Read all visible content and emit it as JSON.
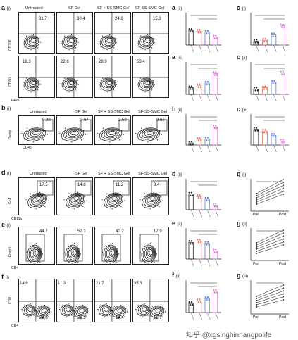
{
  "rows": {
    "a": {
      "label": "a",
      "sub": "(i)",
      "headers": [
        "Untreated",
        "SF Gel",
        "SF + SS-SMC Gel",
        "SF-SS-SMC Gel"
      ],
      "top_values": [
        "31.7",
        "30.4",
        "24.8",
        "15.3"
      ],
      "bottom_values": [
        "18.3",
        "22.6",
        "28.9",
        "53.4"
      ],
      "y_top": "CD206",
      "y_bottom": "CD80",
      "x": "F4/80"
    },
    "b": {
      "label": "b",
      "sub": "(i)",
      "headers": [
        "Untreated",
        "SF Gel",
        "SF + SS-SMC Gel",
        "SF-SS-SMC Gel"
      ],
      "values": [
        "0.98",
        "2.67",
        "2.58",
        "8.66"
      ],
      "y": "Dump",
      "x": "CD45"
    },
    "d": {
      "label": "d",
      "sub": "(i)",
      "headers": [
        "Untreated",
        "SF Gel",
        "SF + SS-SMC Gel",
        "SF-SS-SMC Gel"
      ],
      "values": [
        "17.5",
        "14.8",
        "11.2",
        "3.4"
      ],
      "y": "Gr-1",
      "x": "CD11b"
    },
    "e": {
      "label": "e",
      "sub": "(i)",
      "values": [
        "44.7",
        "52.1",
        "40.2",
        "17.9"
      ],
      "y": "Foxp3",
      "x": "CD4"
    },
    "f": {
      "label": "f",
      "sub": "(i)",
      "top_values": [
        "14.6",
        "11.3",
        "21.7",
        "35.3"
      ],
      "bottom_values": [
        "24.8",
        "21.9",
        "14.4",
        "12.7"
      ],
      "y": "CD8",
      "x": "CD4"
    }
  },
  "bar_panels": [
    {
      "label": "a",
      "sub": "(ii)"
    },
    {
      "label": "a",
      "sub": "(iii)"
    },
    {
      "label": "b",
      "sub": "(ii)"
    },
    {
      "label": "d",
      "sub": "(ii)"
    },
    {
      "label": "e",
      "sub": "(ii)"
    },
    {
      "label": "f",
      "sub": "(ii)"
    },
    {
      "label": "c",
      "sub": "(i)"
    },
    {
      "label": "c",
      "sub": "(ii)"
    },
    {
      "label": "c",
      "sub": "(iii)"
    },
    {
      "label": "g",
      "sub": "(i)"
    },
    {
      "label": "g",
      "sub": "(ii)"
    },
    {
      "label": "g",
      "sub": "(iii)"
    }
  ],
  "pair_x_labels": [
    "Pre",
    "Post"
  ],
  "watermark": "知乎 @xgsinghinnangpolife",
  "colors": {
    "untreated": "#222222",
    "sf": "#e8685a",
    "sf_ss": "#5b7fd6",
    "sf_ss_smc": "#d77ad6"
  }
}
